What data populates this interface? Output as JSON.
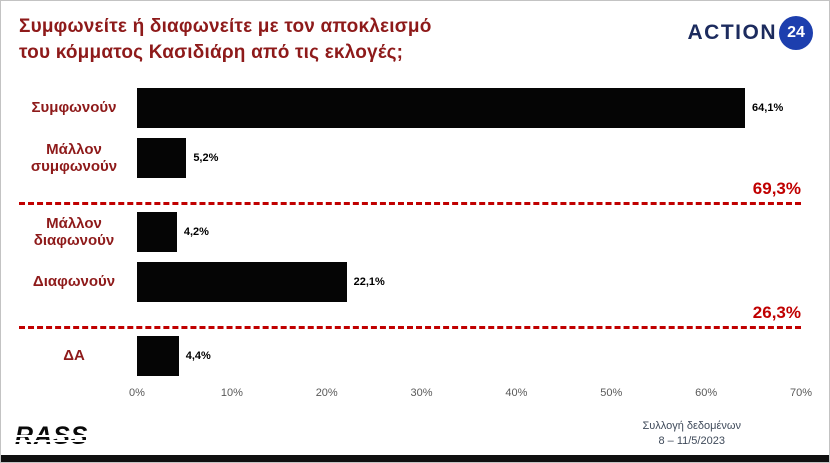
{
  "header": {
    "title_line1": "Συμφωνείτε ή διαφωνείτε με τον αποκλεισμό",
    "title_line2": "του κόμματος Κασιδιάρη από τις εκλογές;",
    "logo": {
      "brand": "ACTION",
      "number": "24"
    }
  },
  "chart_data": {
    "type": "bar",
    "orientation": "horizontal",
    "title": "Συμφωνείτε ή διαφωνείτε με τον αποκλεισμό του κόμματος Κασιδιάρη από τις εκλογές;",
    "categories": [
      "Συμφωνούν",
      "Μάλλον συμφωνούν",
      "Μάλλον διαφωνούν",
      "Διαφωνούν",
      "ΔΑ"
    ],
    "values": [
      64.1,
      5.2,
      4.2,
      22.1,
      4.4
    ],
    "value_labels": [
      "64,1%",
      "5,2%",
      "4,2%",
      "22,1%",
      "4,4%"
    ],
    "xlim": [
      0,
      70
    ],
    "x_ticks": [
      "0%",
      "10%",
      "20%",
      "30%",
      "40%",
      "50%",
      "60%",
      "70%"
    ],
    "group_totals": [
      {
        "label": "69,3%",
        "after_index": 1
      },
      {
        "label": "26,3%",
        "after_index": 3
      }
    ],
    "grid": false,
    "legend": false,
    "bar_color": "#050505",
    "category_color": "#8e1a1a",
    "total_color": "#c00000",
    "separator_style": "dashed-red"
  },
  "footer": {
    "logo": "RASS",
    "note_line1": "Συλλογή δεδομένων",
    "note_line2": "8 – 11/5/2023"
  }
}
